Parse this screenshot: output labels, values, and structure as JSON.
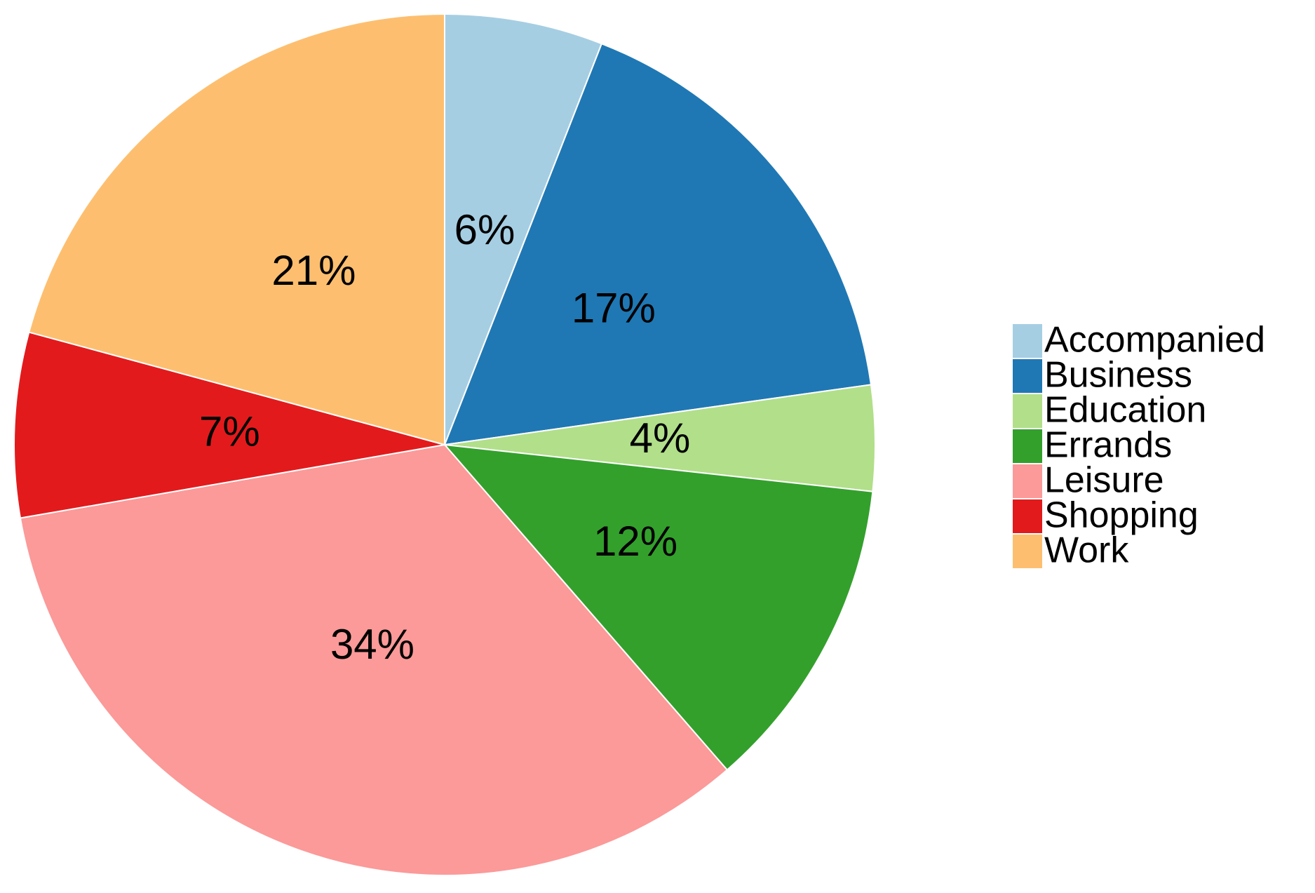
{
  "chart_data": {
    "type": "pie",
    "categories": [
      "Accompanied",
      "Business",
      "Education",
      "Errands",
      "Leisure",
      "Shopping",
      "Work"
    ],
    "values": [
      6,
      17,
      4,
      12,
      34,
      7,
      21
    ],
    "value_labels": [
      "6%",
      "17%",
      "4%",
      "12%",
      "34%",
      "7%",
      "21%"
    ],
    "colors": [
      "#a6cee3",
      "#1f78b4",
      "#b2df8a",
      "#33a02c",
      "#fb9a99",
      "#e31a1c",
      "#fdbf6f"
    ],
    "legend": "right"
  }
}
